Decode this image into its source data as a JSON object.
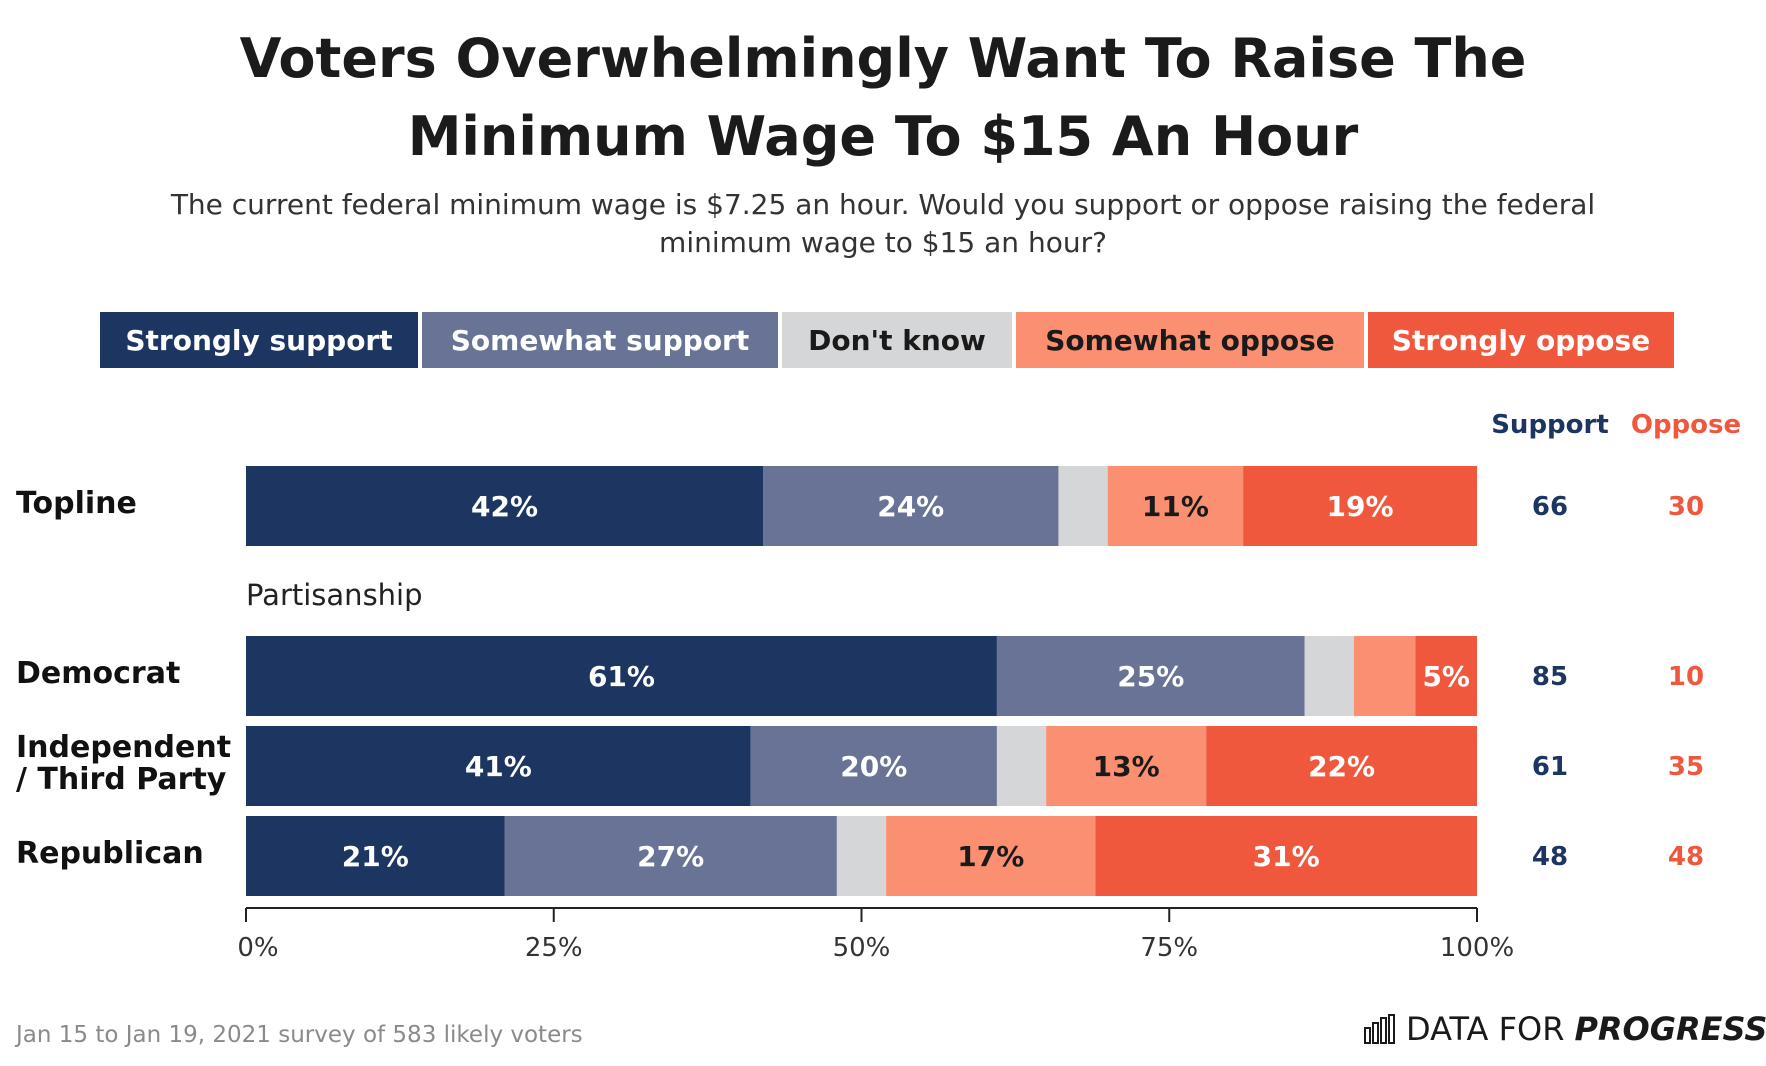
{
  "title_line1": "Voters Overwhelmingly Want To Raise The",
  "title_line2": "Minimum Wage To $15 An Hour",
  "subtitle_line1": "The current federal minimum wage is $7.25 an hour. Would you support or oppose raising the federal",
  "subtitle_line2": "minimum wage to $15 an hour?",
  "legend": [
    {
      "label": "Strongly support",
      "color": "#1c3561",
      "text_color": "#ffffff"
    },
    {
      "label": "Somewhat support",
      "color": "#687396",
      "text_color": "#ffffff"
    },
    {
      "label": "Don't know",
      "color": "#d5d6d8",
      "text_color": "#1a1a1a"
    },
    {
      "label": "Somewhat oppose",
      "color": "#fb8f72",
      "text_color": "#1a1a1a"
    },
    {
      "label": "Strongly oppose",
      "color": "#f0583e",
      "text_color": "#ffffff"
    }
  ],
  "headers": {
    "support": "Support",
    "oppose": "Oppose",
    "support_color": "#1c3561",
    "oppose_color": "#f0583e"
  },
  "section_label": "Partisanship",
  "rows": [
    {
      "label_line1": "Topline",
      "label_line2": "",
      "support": "66",
      "oppose": "30"
    },
    {
      "label_line1": "Democrat",
      "label_line2": "",
      "support": "85",
      "oppose": "10"
    },
    {
      "label_line1": "Independent",
      "label_line2": "/ Third Party",
      "support": "61",
      "oppose": "35"
    },
    {
      "label_line1": "Republican",
      "label_line2": "",
      "support": "48",
      "oppose": "48"
    }
  ],
  "chart_data": {
    "type": "bar",
    "orientation": "horizontal",
    "stacked": true,
    "categories": [
      "Topline",
      "Democrat",
      "Independent / Third Party",
      "Republican"
    ],
    "series": [
      {
        "name": "Strongly support",
        "values": [
          42,
          61,
          41,
          21
        ],
        "labels": [
          "42%",
          "61%",
          "41%",
          "21%"
        ]
      },
      {
        "name": "Somewhat support",
        "values": [
          24,
          25,
          20,
          27
        ],
        "labels": [
          "24%",
          "25%",
          "20%",
          "27%"
        ]
      },
      {
        "name": "Don't know",
        "values": [
          4,
          4,
          4,
          4
        ],
        "labels": [
          "",
          "",
          "",
          ""
        ]
      },
      {
        "name": "Somewhat oppose",
        "values": [
          11,
          5,
          13,
          17
        ],
        "labels": [
          "11%",
          "",
          "13%",
          "17%"
        ]
      },
      {
        "name": "Strongly oppose",
        "values": [
          19,
          5,
          22,
          31
        ],
        "labels": [
          "19%",
          "5%",
          "22%",
          "31%"
        ]
      }
    ],
    "xlim": [
      0,
      100
    ],
    "xticks": [
      "0%",
      "25%",
      "50%",
      "75%",
      "100%"
    ],
    "legend_position": "top"
  },
  "footnote": "Jan 15 to Jan 19, 2021 survey of 583 likely voters",
  "brand": {
    "light": "DATA FOR",
    "bold": "PROGRESS"
  }
}
